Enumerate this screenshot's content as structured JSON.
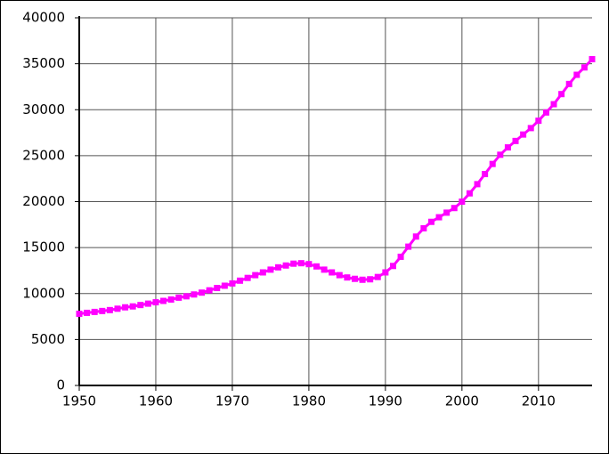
{
  "chart_data": {
    "type": "line",
    "x": [
      1950,
      1951,
      1952,
      1953,
      1954,
      1955,
      1956,
      1957,
      1958,
      1959,
      1960,
      1961,
      1962,
      1963,
      1964,
      1965,
      1966,
      1967,
      1968,
      1969,
      1970,
      1971,
      1972,
      1973,
      1974,
      1975,
      1976,
      1977,
      1978,
      1979,
      1980,
      1981,
      1982,
      1983,
      1984,
      1985,
      1986,
      1987,
      1988,
      1989,
      1990,
      1991,
      1992,
      1993,
      1994,
      1995,
      1996,
      1997,
      1998,
      1999,
      2000,
      2001,
      2002,
      2003,
      2004,
      2005,
      2006,
      2007,
      2008,
      2009,
      2010,
      2011,
      2012,
      2013,
      2014,
      2015,
      2016,
      2017
    ],
    "series": [
      {
        "color": "#ff00ff",
        "values": [
          7800,
          7900,
          8000,
          8100,
          8200,
          8350,
          8500,
          8600,
          8750,
          8900,
          9050,
          9200,
          9350,
          9550,
          9700,
          9900,
          10100,
          10350,
          10600,
          10850,
          11100,
          11400,
          11700,
          12000,
          12300,
          12600,
          12850,
          13050,
          13250,
          13300,
          13200,
          12950,
          12600,
          12300,
          12000,
          11750,
          11600,
          11500,
          11550,
          11800,
          12300,
          13000,
          14000,
          15100,
          16200,
          17100,
          17800,
          18300,
          18800,
          19300,
          20000,
          20900,
          21900,
          23000,
          24100,
          25100,
          25900,
          26600,
          27300,
          28000,
          28800,
          29700,
          30600,
          31700,
          32800,
          33800,
          34600,
          35500
        ]
      }
    ],
    "xlim": [
      1950,
      2017
    ],
    "xticks": [
      1950,
      1960,
      1970,
      1980,
      1990,
      2000,
      2010
    ],
    "ylim": [
      0,
      40000
    ],
    "yticks": [
      0,
      5000,
      10000,
      15000,
      20000,
      25000,
      30000,
      35000,
      40000
    ],
    "grid": true
  }
}
